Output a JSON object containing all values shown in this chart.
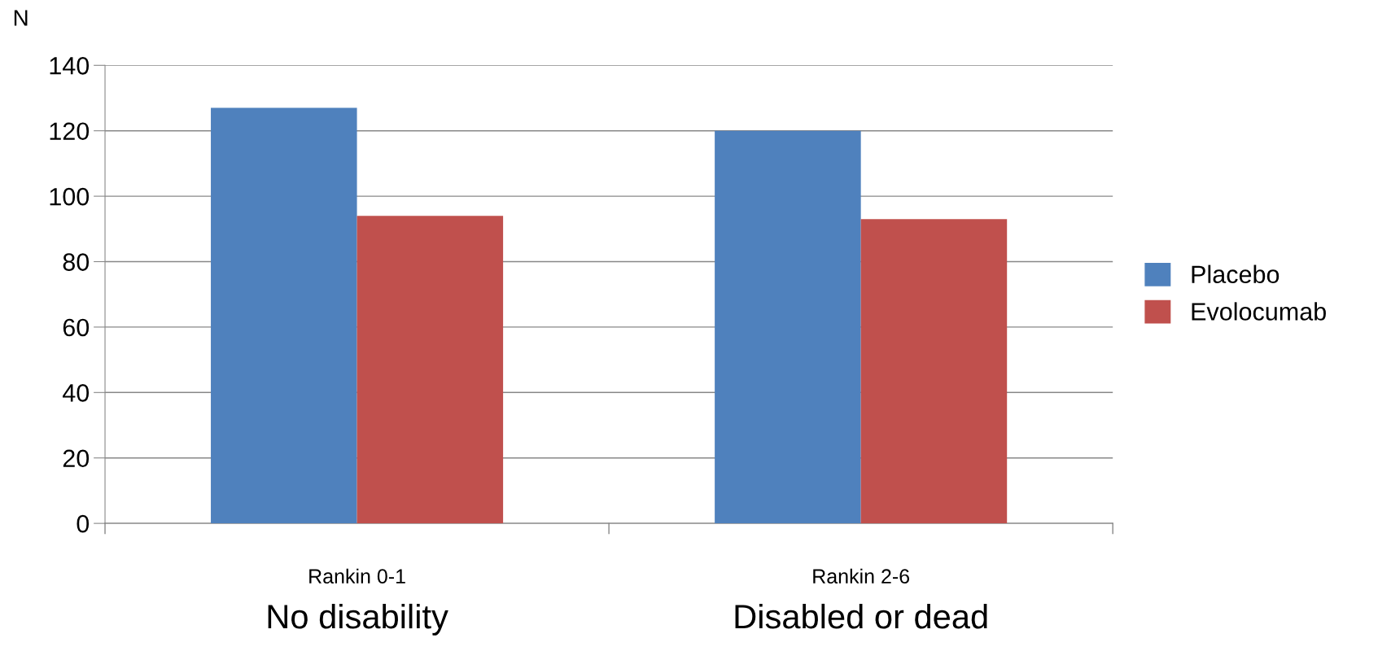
{
  "chart_data": {
    "type": "bar",
    "ylabel": "N",
    "categories": [
      "Rankin 0-1",
      "Rankin 2-6"
    ],
    "series": [
      {
        "name": "Placebo",
        "color": "#4f81bd",
        "values": [
          127,
          120
        ]
      },
      {
        "name": "Evolocumab",
        "color": "#c0504d",
        "values": [
          94,
          93
        ]
      }
    ],
    "ylim": [
      0,
      140
    ],
    "yticks": [
      0,
      20,
      40,
      60,
      80,
      100,
      120,
      140
    ],
    "grid": "y",
    "legend": "right",
    "annotations": [
      "No disability",
      "Disabled or dead"
    ]
  }
}
